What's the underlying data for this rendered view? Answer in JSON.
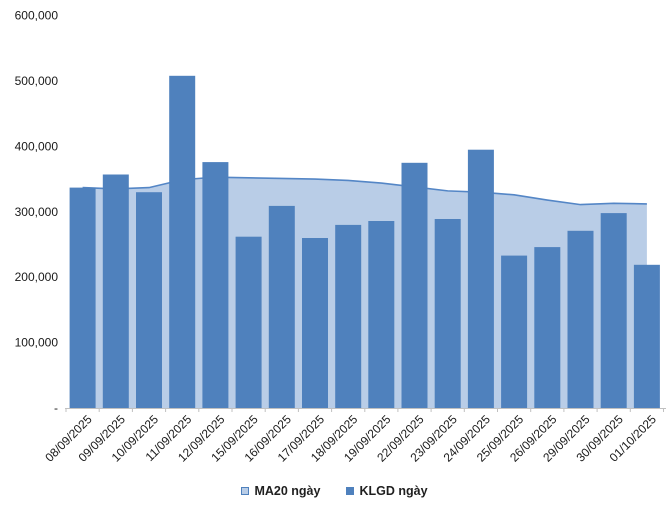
{
  "chart_data": {
    "type": "combo",
    "title": "",
    "categories": [
      "08/09/2025",
      "09/09/2025",
      "10/09/2025",
      "11/09/2025",
      "12/09/2025",
      "15/09/2025",
      "16/09/2025",
      "17/09/2025",
      "18/09/2025",
      "19/09/2025",
      "22/09/2025",
      "23/09/2025",
      "24/09/2025",
      "25/09/2025",
      "26/09/2025",
      "29/09/2025",
      "30/09/2025",
      "01/10/2025"
    ],
    "series": [
      {
        "name": "MA20 ngày",
        "type": "area",
        "fill": "#B9CDE7",
        "line": "#5486C6",
        "values": [
          337000,
          335000,
          337000,
          349000,
          353000,
          352000,
          351000,
          350000,
          348000,
          344000,
          338000,
          332000,
          330000,
          326000,
          318000,
          311000,
          313000,
          312000
        ]
      },
      {
        "name": "KLGD ngày",
        "type": "bar",
        "fill": "#4F81BD",
        "values": [
          337000,
          357000,
          330000,
          508000,
          376000,
          262000,
          309000,
          260000,
          280000,
          286000,
          375000,
          289000,
          395000,
          233000,
          246000,
          271000,
          298000,
          219000
        ]
      }
    ],
    "ylim": [
      0,
      600000
    ],
    "y_ticks": [
      {
        "value": 0,
        "label": "-"
      },
      {
        "value": 100000,
        "label": "100,000"
      },
      {
        "value": 200000,
        "label": "200,000"
      },
      {
        "value": 300000,
        "label": "300,000"
      },
      {
        "value": 400000,
        "label": "400,000"
      },
      {
        "value": 500000,
        "label": "500,000"
      },
      {
        "value": 600000,
        "label": "600,000"
      }
    ],
    "grid": false,
    "legend_position": "bottom",
    "axis_color": "#C0C0C0",
    "text_color": "#1a1a1a"
  }
}
